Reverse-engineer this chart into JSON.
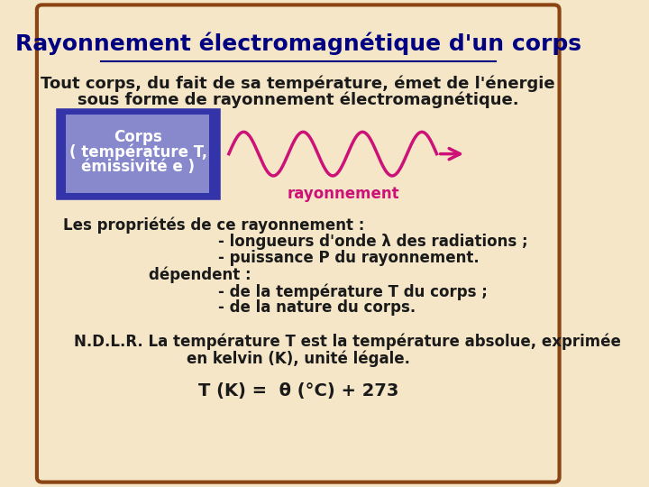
{
  "bg_color": "#f5e6c8",
  "border_color": "#8b4513",
  "title": "Rayonnement électromagnétique d'un corps",
  "title_color": "#000080",
  "title_fontsize": 18,
  "body_fontsize": 13,
  "text_color": "#1a1a1a",
  "line1": "Tout corps, du fait de sa température, émet de l'énergie",
  "line2": "sous forme de rayonnement électromagnétique.",
  "box_outer_color": "#3333aa",
  "box_inner_color": "#8888cc",
  "box_text_line1": "Corps",
  "box_text_line2": "( température T,",
  "box_text_line3": "émissivité e )",
  "box_text_color": "#ffffff",
  "wave_color": "#cc1177",
  "arrow_color": "#cc1177",
  "rayonnement_label": "rayonnement",
  "rayonnement_color": "#cc1177",
  "props_line1": "Les propriétés de ce rayonnement :",
  "props_line2": "- longueurs d'onde λ des radiations ;",
  "props_line3": "- puissance P du rayonnement.",
  "props_line4": "dépendent :",
  "props_line5": "- de la température T du corps ;",
  "props_line6": "- de la nature du corps.",
  "ndlr_line1": "N.D.L.R. La température T est la température absolue, exprimée",
  "ndlr_line2": "en kelvin (K), unité légale.",
  "formula": "T (K) =  θ (°C) + 273"
}
